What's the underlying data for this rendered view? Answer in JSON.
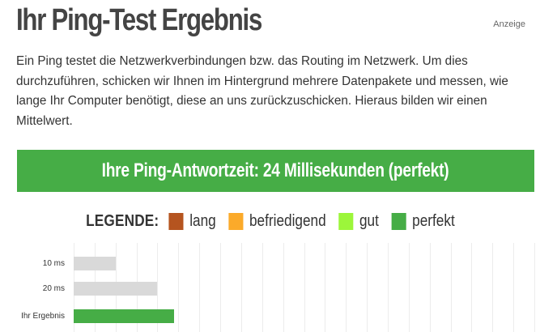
{
  "header": {
    "title": "Ihr Ping-Test Ergebnis",
    "ad_label": "Anzeige"
  },
  "intro": {
    "text": "Ein Ping testet die Netzwerkverbindungen bzw. das Routing im Netzwerk. Um dies durchzuführen, schicken wir Ihnen im Hintergrund mehrere Datenpakete und messen, wie lange Ihr Computer benötigt, diese an uns zurückzuschicken. Hieraus bilden wir einen Mittelwert."
  },
  "result": {
    "text": "Ihre Ping-Antwortzeit: 24 Millisekunden (perfekt)",
    "color": "#46ad46"
  },
  "legend": {
    "title": "LEGENDE:",
    "items": [
      {
        "label": "lang",
        "color": "#b5541f"
      },
      {
        "label": "befriedigend",
        "color": "#fbaa2a"
      },
      {
        "label": "gut",
        "color": "#9cf63a"
      },
      {
        "label": "perfekt",
        "color": "#46ad46"
      }
    ]
  },
  "chart_data": {
    "type": "bar",
    "orientation": "horizontal",
    "categories": [
      "10 ms",
      "20 ms",
      "Ihr Ergebnis"
    ],
    "values": [
      10,
      20,
      24
    ],
    "colors": [
      "#d9d9d9",
      "#d9d9d9",
      "#46ad46"
    ],
    "grid": true,
    "xlim": [
      0,
      110
    ]
  }
}
